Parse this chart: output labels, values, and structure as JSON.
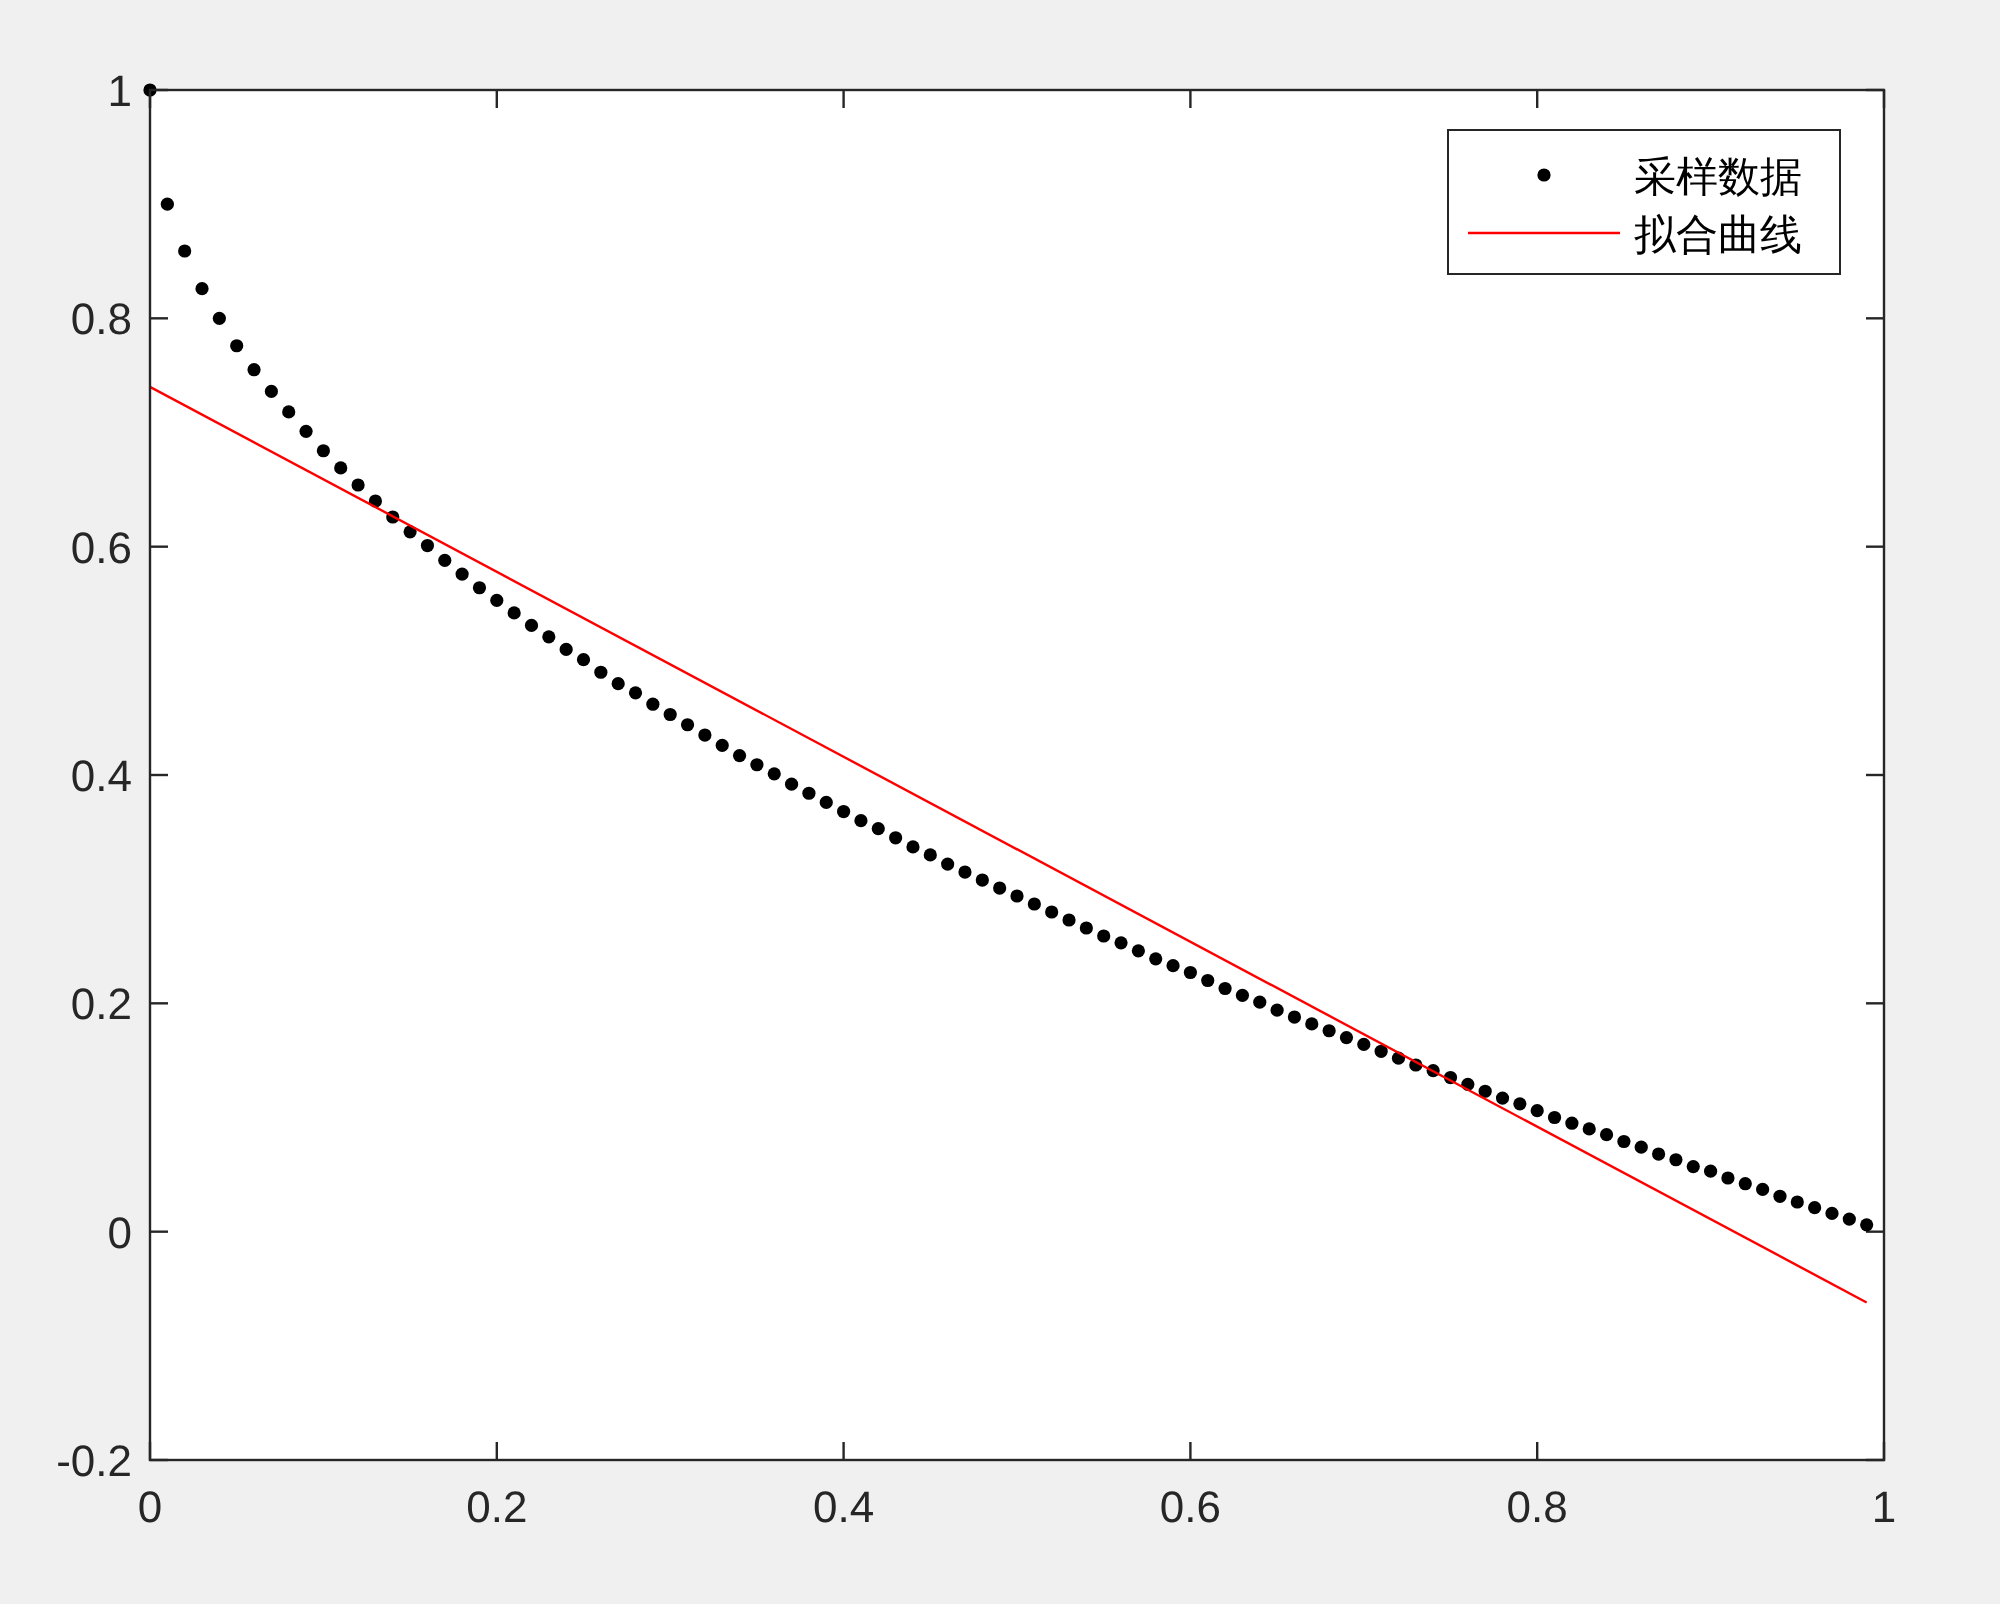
{
  "chart_data": {
    "type": "scatter",
    "xlim": [
      0,
      1
    ],
    "ylim": [
      -0.2,
      1
    ],
    "xticks": [
      0,
      0.2,
      0.4,
      0.6,
      0.8,
      1
    ],
    "yticks": [
      -0.2,
      0,
      0.2,
      0.4,
      0.6,
      0.8,
      1
    ],
    "grid": false,
    "legend": "top right",
    "series": [
      {
        "name": "采样数据",
        "marker": "circle",
        "color": "#000000",
        "x": [
          0,
          0.01,
          0.02,
          0.03,
          0.04,
          0.05,
          0.06,
          0.07,
          0.08,
          0.09,
          0.1,
          0.11,
          0.12,
          0.13,
          0.14,
          0.15,
          0.16,
          0.17,
          0.18,
          0.19,
          0.2,
          0.21,
          0.22,
          0.23,
          0.24,
          0.25,
          0.26,
          0.27,
          0.28,
          0.29,
          0.3,
          0.31,
          0.32,
          0.33,
          0.34,
          0.35,
          0.36,
          0.37,
          0.38,
          0.39,
          0.4,
          0.41,
          0.42,
          0.43,
          0.44,
          0.45,
          0.46,
          0.47,
          0.48,
          0.49,
          0.5,
          0.51,
          0.52,
          0.53,
          0.54,
          0.55,
          0.56,
          0.57,
          0.58,
          0.59,
          0.6,
          0.61,
          0.62,
          0.63,
          0.64,
          0.65,
          0.66,
          0.67,
          0.68,
          0.69,
          0.7,
          0.71,
          0.72,
          0.73,
          0.74,
          0.75,
          0.76,
          0.77,
          0.78,
          0.79,
          0.8,
          0.81,
          0.82,
          0.83,
          0.84,
          0.85,
          0.86,
          0.87,
          0.88,
          0.89,
          0.9,
          0.91,
          0.92,
          0.93,
          0.94,
          0.95,
          0.96,
          0.97,
          0.98,
          0.99
        ],
        "values": [
          1,
          0.9,
          0.859,
          0.826,
          0.8,
          0.776,
          0.755,
          0.736,
          0.718,
          0.701,
          0.684,
          0.669,
          0.654,
          0.64,
          0.626,
          0.613,
          0.601,
          0.588,
          0.576,
          0.564,
          0.553,
          0.542,
          0.531,
          0.521,
          0.51,
          0.501,
          0.49,
          0.48,
          0.472,
          0.462,
          0.453,
          0.444,
          0.435,
          0.426,
          0.417,
          0.409,
          0.401,
          0.392,
          0.384,
          0.376,
          0.368,
          0.36,
          0.353,
          0.345,
          0.337,
          0.33,
          0.322,
          0.315,
          0.308,
          0.301,
          0.294,
          0.287,
          0.28,
          0.273,
          0.266,
          0.259,
          0.253,
          0.246,
          0.239,
          0.233,
          0.227,
          0.22,
          0.213,
          0.207,
          0.201,
          0.194,
          0.188,
          0.182,
          0.176,
          0.17,
          0.164,
          0.158,
          0.152,
          0.146,
          0.141,
          0.135,
          0.129,
          0.123,
          0.117,
          0.112,
          0.106,
          0.1,
          0.095,
          0.09,
          0.085,
          0.079,
          0.074,
          0.068,
          0.063,
          0.057,
          0.053,
          0.047,
          0.042,
          0.037,
          0.031,
          0.026,
          0.021,
          0.016,
          0.011,
          0.006
        ]
      },
      {
        "name": "拟合曲线",
        "type": "line",
        "marker": "none",
        "line_style": "solid",
        "color": "#ff0000",
        "x": [
          0,
          0.99
        ],
        "values": [
          0.74,
          -0.062
        ]
      }
    ]
  }
}
